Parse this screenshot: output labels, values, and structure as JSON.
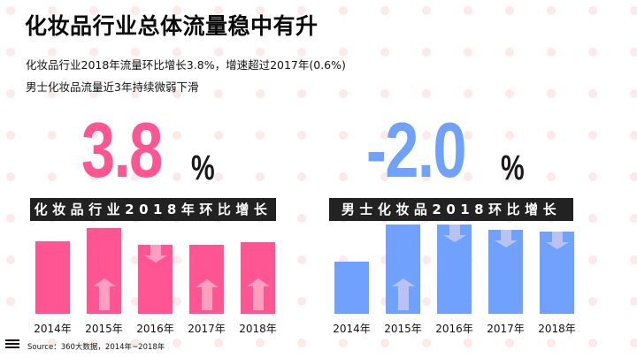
{
  "header": {
    "title": "化妆品行业总体流量稳中有升",
    "subtitle_line1": "化妆品行业2018年流量环比增长3.8%，增速超过2017年(0.6%)",
    "subtitle_line2": "男士化妆品流量近3年持续微弱下滑"
  },
  "left_panel": {
    "big_value": "3.8",
    "percent_sign": "%",
    "label": "化妆品行业2018年环比增长",
    "color": "#ff5693"
  },
  "right_panel": {
    "big_value": "-2.0",
    "percent_sign": "%",
    "label": "男士化妆品2018环比增长",
    "color": "#70a1ff"
  },
  "footer": {
    "icon": "menu-lines-icon",
    "source": "Source：360大数据，2014年~2018年"
  },
  "colors": {
    "pink": "#ff5693",
    "pink_arrow": "#ff9fc0",
    "blue": "#70a1ff",
    "blue_arrow": "#b9c3f2",
    "dot": "#fde9e9",
    "label_bg": "#222222"
  },
  "chart_data": [
    {
      "type": "bar",
      "title": "化妆品行业2018年环比增长",
      "categories": [
        "2014年",
        "2015年",
        "2016年",
        "2017年",
        "2018年"
      ],
      "values": [
        82,
        97,
        78,
        78,
        81
      ],
      "trend_arrows": [
        "none",
        "up",
        "down",
        "up",
        "up"
      ],
      "headline_value": "3.8%",
      "xlabel": "",
      "ylabel": "",
      "grid": false,
      "note": "relative traffic index estimated from bar pixel heights; no y-axis shown"
    },
    {
      "type": "bar",
      "title": "男士化妆品2018环比增长",
      "categories": [
        "2014年",
        "2015年",
        "2016年",
        "2017年",
        "2018年"
      ],
      "values": [
        59,
        101,
        101,
        95,
        93
      ],
      "trend_arrows": [
        "none",
        "up",
        "down",
        "down",
        "down"
      ],
      "headline_value": "-2.0%",
      "xlabel": "",
      "ylabel": "",
      "grid": false,
      "note": "relative traffic index estimated from bar pixel heights; no y-axis shown"
    }
  ]
}
